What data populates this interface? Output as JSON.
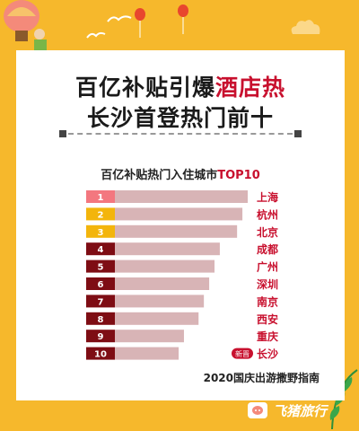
{
  "header": {
    "line1_plain": "百亿补贴引爆",
    "line1_highlight": "酒店热",
    "line2": "长沙首登热门前十"
  },
  "chart_data": {
    "type": "bar",
    "orientation": "horizontal",
    "title_plain": "百亿补贴热门入住城市",
    "title_accent": "TOP10",
    "categories": [
      "上海",
      "杭州",
      "北京",
      "成都",
      "广州",
      "深圳",
      "南京",
      "西安",
      "重庆",
      "长沙"
    ],
    "ranks": [
      "1",
      "2",
      "3",
      "4",
      "5",
      "6",
      "7",
      "8",
      "9",
      "10"
    ],
    "values": [
      100,
      96,
      92,
      79,
      75,
      71,
      67,
      63,
      52,
      48
    ],
    "xlim": [
      0,
      100
    ],
    "grid": false,
    "legend": "none",
    "rank_colors": [
      "#f3777f",
      "#f3b50c",
      "#f3b50c",
      "#7e0d14",
      "#7e0d14",
      "#7e0d14",
      "#7e0d14",
      "#7e0d14",
      "#7e0d14",
      "#7e0d14"
    ],
    "bar_color": "#d8b4b6",
    "label_color": "#c8102e",
    "new_badge": {
      "category": "长沙",
      "text": "新晋"
    }
  },
  "footer": {
    "note": "2020国庆出游撒野指南"
  },
  "brand": {
    "name": "飞猪旅行"
  },
  "colors": {
    "background": "#f6b82c",
    "card": "#ffffff",
    "accent": "#c8102e"
  }
}
